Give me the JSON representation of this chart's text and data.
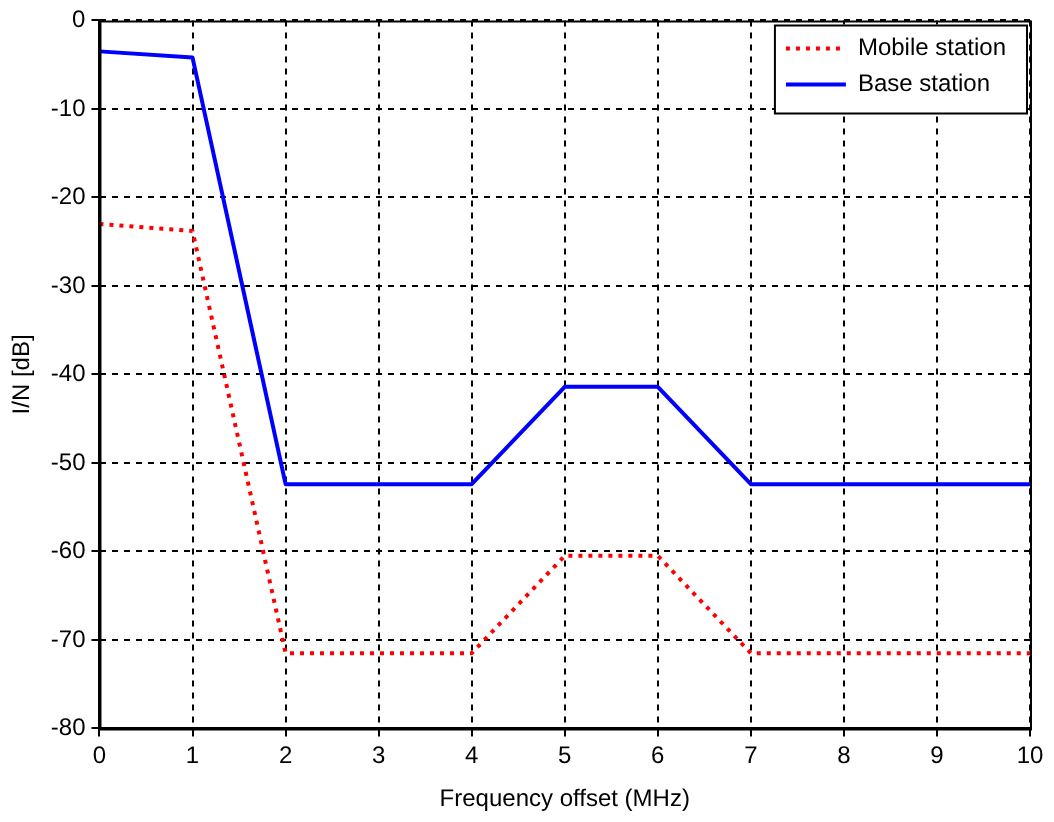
{
  "chart_data": {
    "type": "line",
    "xlabel": "Frequency offset (MHz)",
    "ylabel": "I/N [dB]",
    "x": [
      0,
      1,
      2,
      4,
      5,
      6,
      7,
      10
    ],
    "series": [
      {
        "name": "Mobile station",
        "color": "#ff0000",
        "line_style": "dotted",
        "values": [
          -23,
          -23.8,
          -71.5,
          -71.5,
          -60.5,
          -60.5,
          -71.5,
          -71.5
        ]
      },
      {
        "name": "Base station",
        "color": "#0000ff",
        "line_style": "solid",
        "values": [
          -3.5,
          -4.2,
          -52.4,
          -52.4,
          -41.4,
          -41.4,
          -52.4,
          -52.4
        ]
      }
    ],
    "xlim": [
      0,
      10
    ],
    "xticks": [
      0,
      1,
      2,
      3,
      4,
      5,
      6,
      7,
      8,
      9,
      10
    ],
    "ylim": [
      -80,
      0
    ],
    "yticks": [
      -80,
      -70,
      -60,
      -50,
      -40,
      -30,
      -20,
      -10,
      0
    ],
    "grid": true,
    "legend": "top right",
    "marker": "none"
  }
}
